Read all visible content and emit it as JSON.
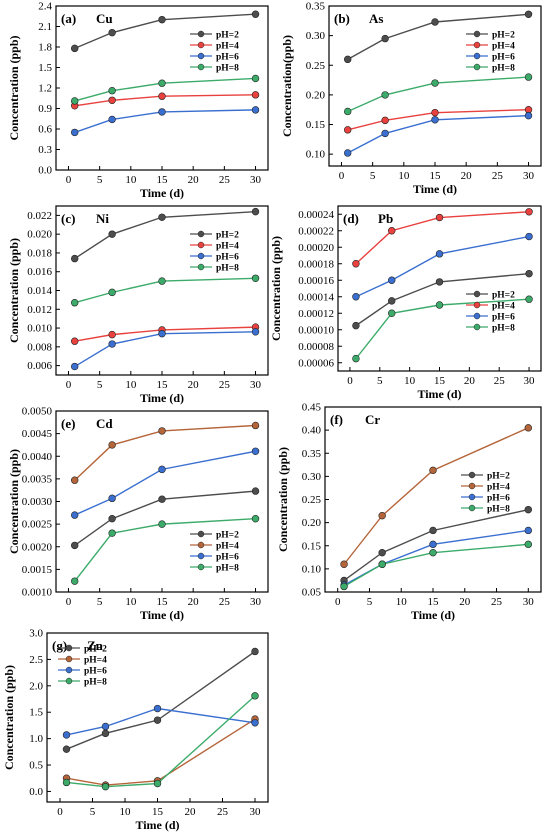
{
  "chart_data": [
    {
      "type": "line",
      "panel_label": "(a)",
      "element": "Cu",
      "xlabel": "Time (d)",
      "ylabel": "Concentration (ppb)",
      "x": [
        1,
        7,
        15,
        30
      ],
      "xlim": [
        -2,
        32
      ],
      "xticks": [
        "0",
        "5",
        "10",
        "15",
        "20",
        "25",
        "30"
      ],
      "ylim": [
        0,
        2.4
      ],
      "yticks": [
        "0.0",
        "0.3",
        "0.6",
        "0.9",
        "1.2",
        "1.5",
        "1.8",
        "2.1",
        "2.4"
      ],
      "legend_position": "top-right",
      "series": [
        {
          "name": "pH=2",
          "color": "#4d4d4d",
          "values": [
            1.78,
            2.01,
            2.2,
            2.28
          ]
        },
        {
          "name": "pH=4",
          "color": "#e8413e",
          "values": [
            0.94,
            1.02,
            1.08,
            1.1
          ]
        },
        {
          "name": "pH=6",
          "color": "#3a6fd0",
          "values": [
            0.55,
            0.74,
            0.85,
            0.88
          ]
        },
        {
          "name": "pH=8",
          "color": "#3cab6a",
          "values": [
            1.01,
            1.16,
            1.27,
            1.34
          ]
        }
      ]
    },
    {
      "type": "line",
      "panel_label": "(b)",
      "element": "As",
      "xlabel": "Time (d)",
      "ylabel": "Concentration(ppb)",
      "x": [
        1,
        7,
        15,
        30
      ],
      "xlim": [
        -2,
        32
      ],
      "xticks": [
        "0",
        "5",
        "10",
        "15",
        "20",
        "25",
        "30"
      ],
      "ylim": [
        0.08,
        0.35
      ],
      "yticks": [
        "0.10",
        "0.15",
        "0.20",
        "0.25",
        "0.30",
        "0.35"
      ],
      "legend_position": "top-right",
      "series": [
        {
          "name": "pH=2",
          "color": "#4d4d4d",
          "values": [
            0.26,
            0.295,
            0.323,
            0.336
          ]
        },
        {
          "name": "pH=4",
          "color": "#e8413e",
          "values": [
            0.141,
            0.157,
            0.17,
            0.175
          ]
        },
        {
          "name": "pH=6",
          "color": "#3a6fd0",
          "values": [
            0.102,
            0.135,
            0.158,
            0.165
          ]
        },
        {
          "name": "pH=8",
          "color": "#3cab6a",
          "values": [
            0.172,
            0.2,
            0.22,
            0.23
          ]
        }
      ]
    },
    {
      "type": "line",
      "panel_label": "(c)",
      "element": "Ni",
      "xlabel": "Time (d)",
      "ylabel": "Concentration (ppb)",
      "x": [
        1,
        7,
        15,
        30
      ],
      "xlim": [
        -2,
        32
      ],
      "xticks": [
        "0",
        "5",
        "10",
        "15",
        "20",
        "25",
        "30"
      ],
      "ylim": [
        0.005,
        0.023
      ],
      "yticks": [
        "0.006",
        "0.008",
        "0.010",
        "0.012",
        "0.014",
        "0.016",
        "0.018",
        "0.020",
        "0.022"
      ],
      "legend_position": "top-right",
      "series": [
        {
          "name": "pH=2",
          "color": "#4d4d4d",
          "values": [
            0.0174,
            0.02,
            0.0218,
            0.0224
          ]
        },
        {
          "name": "pH=4",
          "color": "#e8413e",
          "values": [
            0.0086,
            0.0093,
            0.0098,
            0.0101
          ]
        },
        {
          "name": "pH=6",
          "color": "#3a6fd0",
          "values": [
            0.0059,
            0.0083,
            0.0094,
            0.0096
          ]
        },
        {
          "name": "pH=8",
          "color": "#3cab6a",
          "values": [
            0.0127,
            0.0138,
            0.015,
            0.0153
          ]
        }
      ]
    },
    {
      "type": "line",
      "panel_label": "(d)",
      "element": "Pb",
      "xlabel": "Time (d)",
      "ylabel": "Concentration (ppb)",
      "x": [
        1,
        7,
        15,
        30
      ],
      "xlim": [
        -2,
        32
      ],
      "xticks": [
        "0",
        "5",
        "10",
        "15",
        "20",
        "25",
        "30"
      ],
      "ylim": [
        5e-05,
        0.00025
      ],
      "yticks": [
        "0.00006",
        "0.00008",
        "0.00010",
        "0.00012",
        "0.00014",
        "0.00016",
        "0.00018",
        "0.00020",
        "0.00022",
        "0.00024"
      ],
      "legend_position": "bottom-right",
      "series": [
        {
          "name": "pH=2",
          "color": "#4d4d4d",
          "values": [
            0.000105,
            0.000135,
            0.000158,
            0.000168
          ]
        },
        {
          "name": "pH=4",
          "color": "#e8413e",
          "values": [
            0.00018,
            0.00022,
            0.000236,
            0.000243
          ]
        },
        {
          "name": "pH=6",
          "color": "#3a6fd0",
          "values": [
            0.00014,
            0.00016,
            0.000192,
            0.000213
          ]
        },
        {
          "name": "pH=8",
          "color": "#3cab6a",
          "values": [
            6.5e-05,
            0.00012,
            0.00013,
            0.000137
          ]
        }
      ]
    },
    {
      "type": "line",
      "panel_label": "(e)",
      "element": "Cd",
      "xlabel": "Time (d)",
      "ylabel": "Concentration (ppb)",
      "x": [
        1,
        7,
        15,
        30
      ],
      "xlim": [
        -2,
        32
      ],
      "xticks": [
        "0",
        "5",
        "10",
        "15",
        "20",
        "25",
        "30"
      ],
      "ylim": [
        0.001,
        0.005
      ],
      "yticks": [
        "0.0010",
        "0.0015",
        "0.0020",
        "0.0025",
        "0.0030",
        "0.0035",
        "0.0040",
        "0.0045",
        "0.0050"
      ],
      "legend_position": "bottom-right",
      "series": [
        {
          "name": "pH=2",
          "color": "#4d4d4d",
          "values": [
            0.00203,
            0.00262,
            0.00305,
            0.00323
          ]
        },
        {
          "name": "pH=4",
          "color": "#b5653a",
          "values": [
            0.00347,
            0.00425,
            0.00456,
            0.00468
          ]
        },
        {
          "name": "pH=6",
          "color": "#3a6fd0",
          "values": [
            0.0027,
            0.00307,
            0.00371,
            0.00411
          ]
        },
        {
          "name": "pH=8",
          "color": "#3cab6a",
          "values": [
            0.00124,
            0.0023,
            0.0025,
            0.00262
          ]
        }
      ]
    },
    {
      "type": "line",
      "panel_label": "(f)",
      "element": "Cr",
      "xlabel": "Time (d)",
      "ylabel": "Concentration (ppb)",
      "x": [
        1,
        7,
        15,
        30
      ],
      "xlim": [
        -2,
        32
      ],
      "xticks": [
        "0",
        "5",
        "10",
        "15",
        "20",
        "25",
        "30"
      ],
      "ylim": [
        0.05,
        0.45
      ],
      "yticks": [
        "0.05",
        "0.10",
        "0.15",
        "0.20",
        "0.25",
        "0.30",
        "0.35",
        "0.40",
        "0.45"
      ],
      "legend_position": "right",
      "series": [
        {
          "name": "pH=2",
          "color": "#4d4d4d",
          "values": [
            0.075,
            0.135,
            0.183,
            0.228
          ]
        },
        {
          "name": "pH=4",
          "color": "#b5653a",
          "values": [
            0.11,
            0.215,
            0.313,
            0.405
          ]
        },
        {
          "name": "pH=6",
          "color": "#3a6fd0",
          "values": [
            0.065,
            0.11,
            0.153,
            0.183
          ]
        },
        {
          "name": "pH=8",
          "color": "#3cab6a",
          "values": [
            0.062,
            0.11,
            0.135,
            0.153
          ]
        }
      ]
    },
    {
      "type": "line",
      "panel_label": "(g)",
      "element": "Zn",
      "xlabel": "Time (d)",
      "ylabel": "Concentration (ppb)",
      "x": [
        1,
        7,
        15,
        30
      ],
      "xlim": [
        -2,
        32
      ],
      "xticks": [
        "0",
        "5",
        "10",
        "15",
        "20",
        "25",
        "30"
      ],
      "ylim": [
        -0.2,
        3.0
      ],
      "yticks": [
        "0.0",
        "0.5",
        "1.0",
        "1.5",
        "2.0",
        "2.5",
        "3.0"
      ],
      "legend_position": "top-left",
      "series": [
        {
          "name": "pH=2",
          "color": "#4d4d4d",
          "values": [
            0.8,
            1.1,
            1.35,
            2.65
          ]
        },
        {
          "name": "pH=4",
          "color": "#b5653a",
          "values": [
            0.25,
            0.12,
            0.2,
            1.37
          ]
        },
        {
          "name": "pH=6",
          "color": "#3a6fd0",
          "values": [
            1.07,
            1.23,
            1.57,
            1.3
          ]
        },
        {
          "name": "pH=8",
          "color": "#3cab6a",
          "values": [
            0.17,
            0.09,
            0.15,
            1.81
          ]
        }
      ]
    }
  ]
}
